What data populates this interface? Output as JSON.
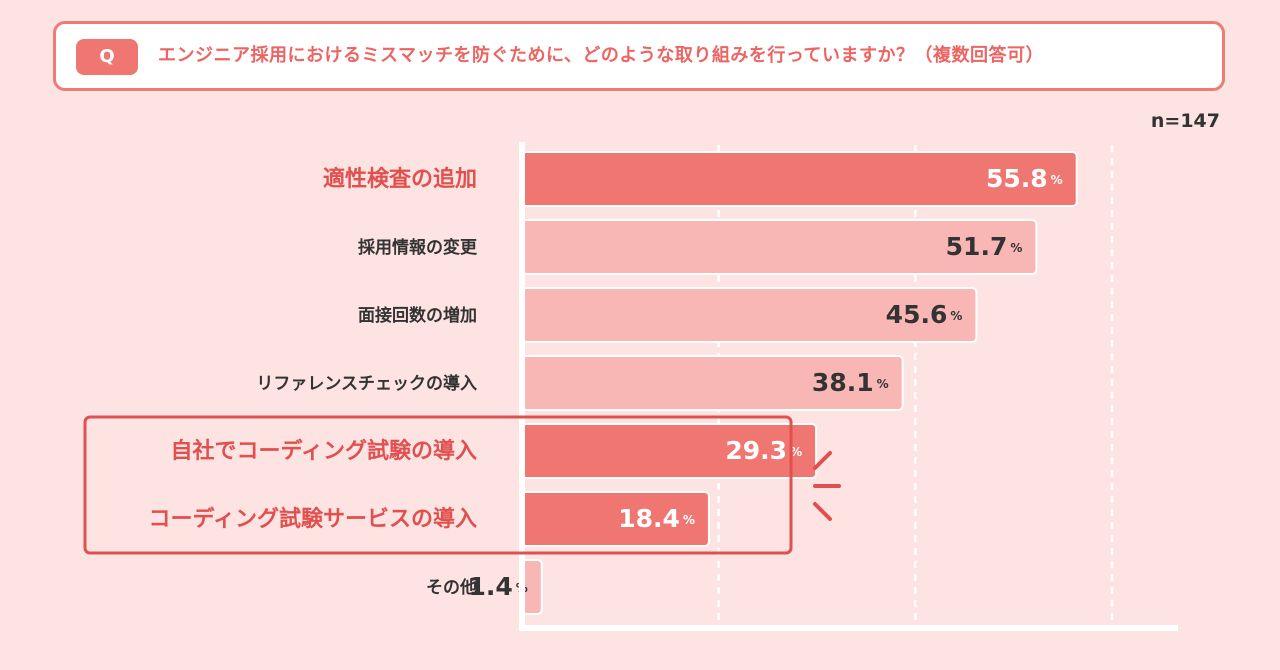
{
  "question": {
    "badge": "Q",
    "text": "エンジニア採用におけるミスマッチを防ぐために、どのような取り組みを行っていますか？（複数回答可）"
  },
  "sample_size": "n=147",
  "colors": {
    "accent": "#f07672",
    "bar_light": "#f8b7b4",
    "background": "#fde3e2",
    "highlight_text": "#e0504e",
    "normal_text": "#333333"
  },
  "chart_data": {
    "type": "bar",
    "orientation": "horizontal",
    "categories": [
      "適性検査の追加",
      "採用情報の変更",
      "面接回数の増加",
      "リファレンスチェックの導入",
      "自社でコーディング試験の導入",
      "コーディング試験サービスの導入",
      "その他"
    ],
    "values": [
      55.8,
      51.7,
      45.6,
      38.1,
      29.3,
      18.4,
      1.4
    ],
    "value_labels": [
      "55.8",
      "51.7",
      "45.6",
      "38.1",
      "29.3",
      "18.4",
      "1.4"
    ],
    "unit": "%",
    "highlighted": [
      true,
      false,
      false,
      false,
      true,
      true,
      false
    ],
    "xlim": [
      0,
      60
    ],
    "gridlines_at": [
      20,
      40,
      60
    ],
    "grid": "dashed-vertical"
  }
}
